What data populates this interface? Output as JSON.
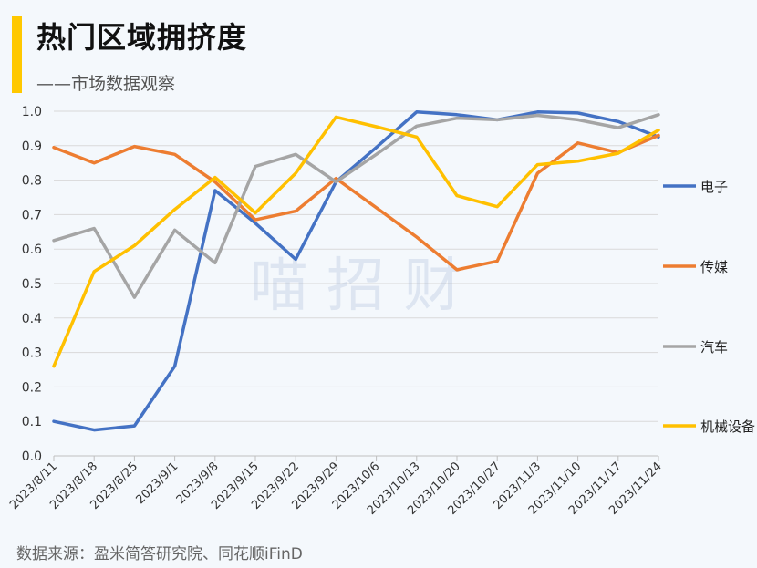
{
  "header": {
    "title": "热门区域拥挤度",
    "subtitle": "——市场数据观察"
  },
  "footer": {
    "source": "数据来源：盈米简答研究院、同花顺iFinD"
  },
  "watermark": "喵 招 财",
  "colors": {
    "accent": "#ffc800",
    "grid": "#d9d9d9",
    "axis": "#bfbfbf"
  },
  "chart_data": {
    "type": "line",
    "ylim": [
      0,
      1.0
    ],
    "yticks": [
      "0.0",
      "0.1",
      "0.2",
      "0.3",
      "0.4",
      "0.5",
      "0.6",
      "0.7",
      "0.8",
      "0.9",
      "1.0"
    ],
    "categories": [
      "2023/8/11",
      "2023/8/18",
      "2023/8/25",
      "2023/9/1",
      "2023/9/8",
      "2023/9/15",
      "2023/9/22",
      "2023/9/29",
      "2023/10/6",
      "2023/10/13",
      "2023/10/20",
      "2023/10/27",
      "2023/11/3",
      "2023/11/10",
      "2023/11/17",
      "2023/11/24"
    ],
    "grid": true,
    "legend_position": "right",
    "series": [
      {
        "name": "电子",
        "color": "#4472c4",
        "values": [
          0.1,
          0.075,
          0.087,
          0.26,
          0.77,
          0.675,
          0.57,
          0.795,
          0.895,
          0.998,
          0.99,
          0.975,
          0.998,
          0.995,
          0.97,
          0.925
        ]
      },
      {
        "name": "传媒",
        "color": "#ed7d31",
        "values": [
          0.895,
          0.85,
          0.898,
          0.875,
          0.795,
          0.685,
          0.71,
          0.805,
          0.72,
          0.635,
          0.54,
          0.565,
          0.82,
          0.908,
          0.88,
          0.93
        ]
      },
      {
        "name": "汽车",
        "color": "#a5a5a5",
        "values": [
          0.625,
          0.66,
          0.46,
          0.655,
          0.56,
          0.84,
          0.875,
          0.795,
          0.875,
          0.957,
          0.98,
          0.975,
          0.988,
          0.975,
          0.952,
          0.99
        ]
      },
      {
        "name": "机械设备",
        "color": "#ffc000",
        "values": [
          0.26,
          0.535,
          0.61,
          0.715,
          0.808,
          0.705,
          0.82,
          0.983,
          0.955,
          0.925,
          0.755,
          0.723,
          0.845,
          0.855,
          0.878,
          0.945
        ]
      }
    ]
  }
}
